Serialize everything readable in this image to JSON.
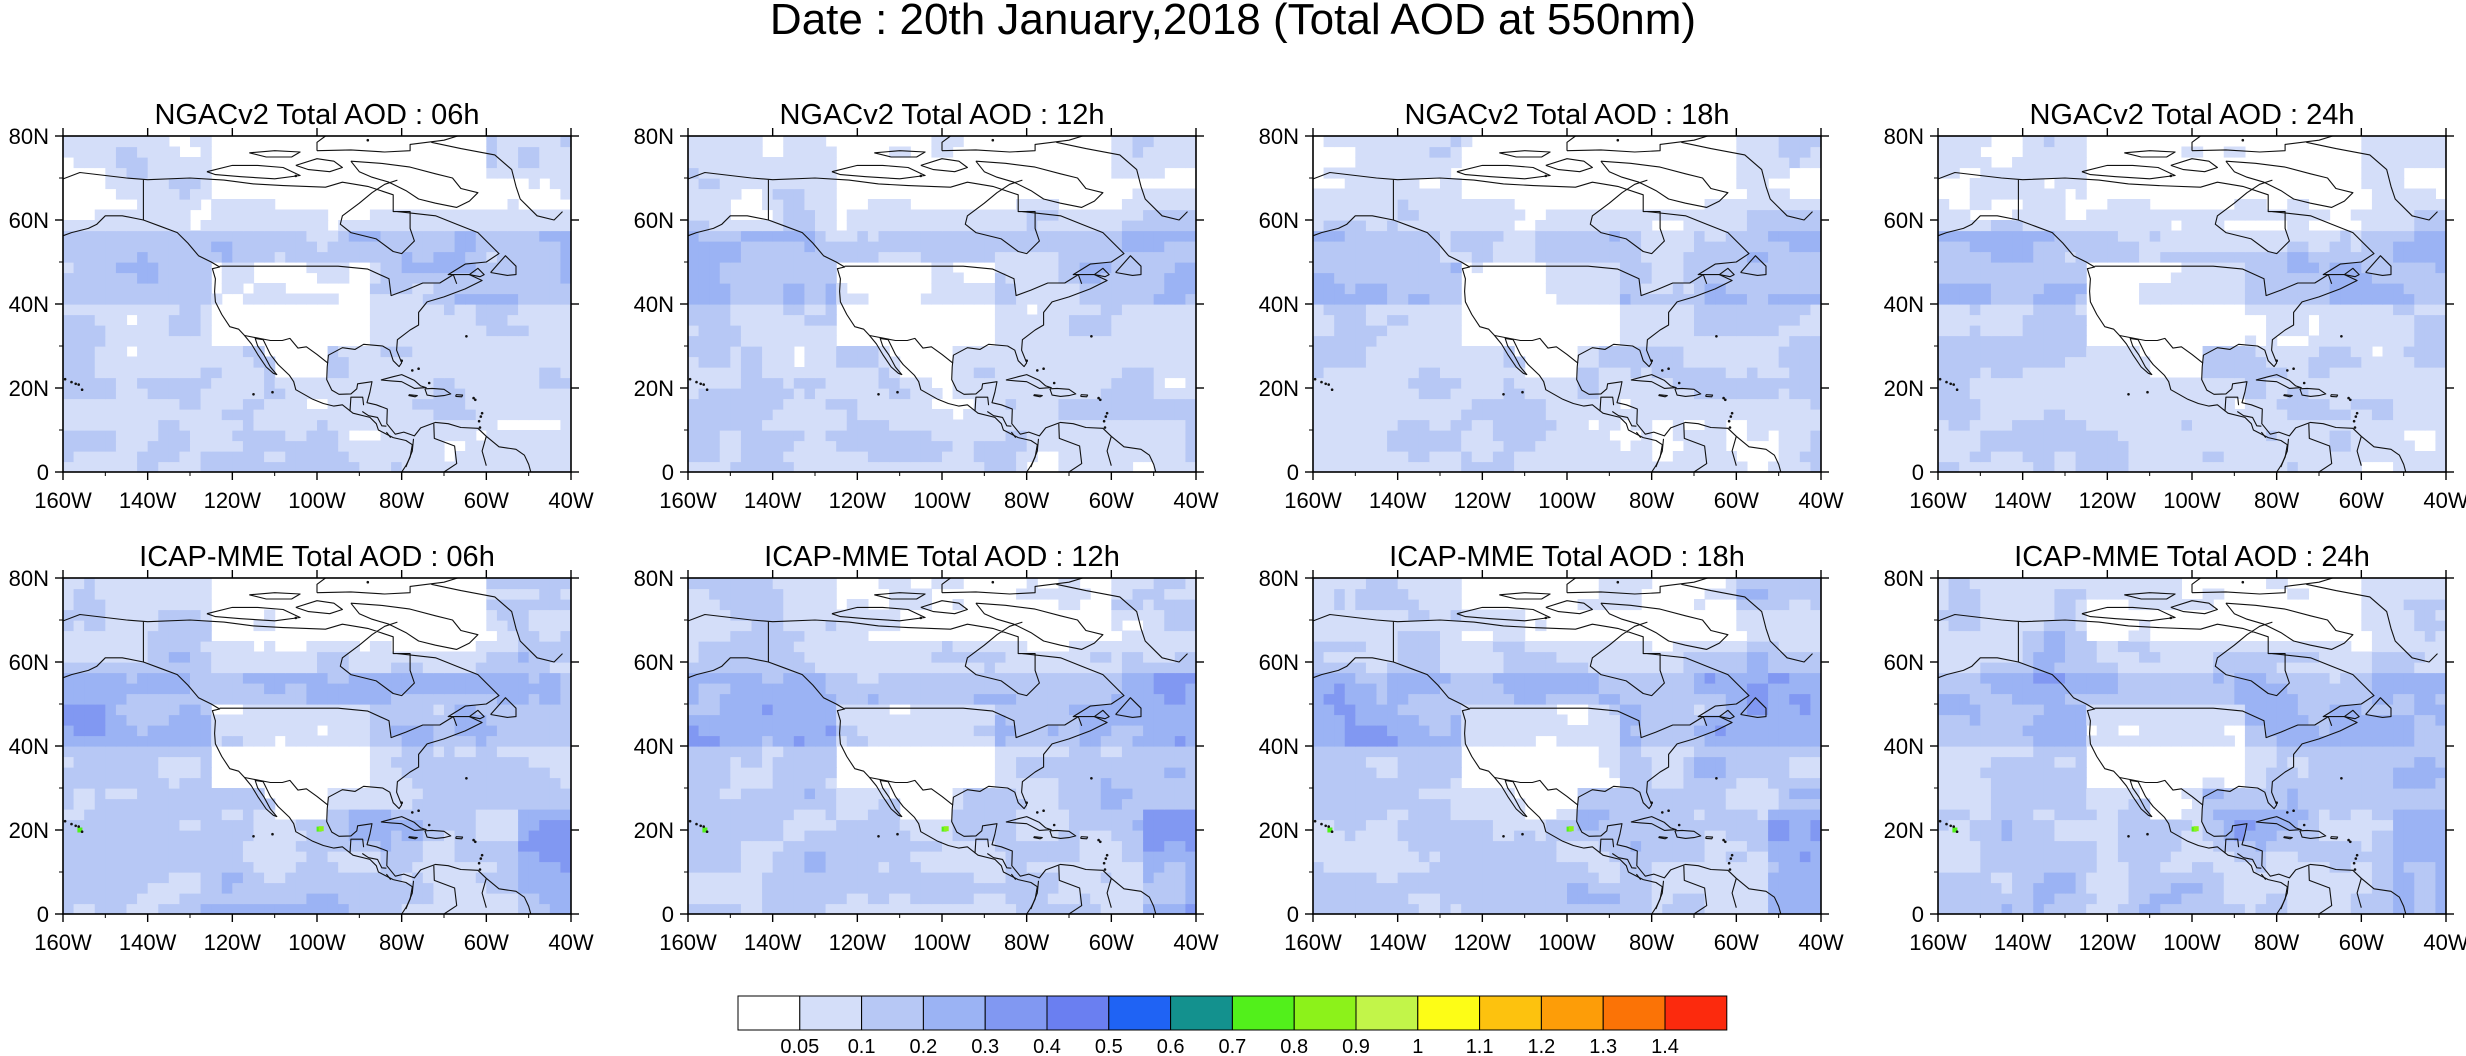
{
  "figure": {
    "title": "Date : 20th January,2018 (Total AOD at 550nm)"
  },
  "panels": [
    {
      "title": "NGACv2 Total AOD : 06h",
      "model": "NGACv2",
      "hour": "06h"
    },
    {
      "title": "NGACv2 Total AOD : 12h",
      "model": "NGACv2",
      "hour": "12h"
    },
    {
      "title": "NGACv2 Total AOD : 18h",
      "model": "NGACv2",
      "hour": "18h"
    },
    {
      "title": "NGACv2 Total AOD : 24h",
      "model": "NGACv2",
      "hour": "24h"
    },
    {
      "title": "ICAP-MME Total AOD : 06h",
      "model": "ICAP-MME",
      "hour": "06h"
    },
    {
      "title": "ICAP-MME Total AOD : 12h",
      "model": "ICAP-MME",
      "hour": "12h"
    },
    {
      "title": "ICAP-MME Total AOD : 18h",
      "model": "ICAP-MME",
      "hour": "18h"
    },
    {
      "title": "ICAP-MME Total AOD : 24h",
      "model": "ICAP-MME",
      "hour": "24h"
    }
  ],
  "axes": {
    "lon_ticks": [
      "160W",
      "140W",
      "120W",
      "100W",
      "80W",
      "60W",
      "40W"
    ],
    "lat_ticks": [
      "80N",
      "60N",
      "40N",
      "20N",
      "0"
    ],
    "lon_range": [
      -160,
      -40
    ],
    "lat_range": [
      0,
      80
    ]
  },
  "colorbar": {
    "labels": [
      "0.05",
      "0.1",
      "0.2",
      "0.3",
      "0.4",
      "0.5",
      "0.6",
      "0.7",
      "0.8",
      "0.9",
      "1",
      "1.1",
      "1.2",
      "1.3",
      "1.4"
    ],
    "colors": [
      "#ffffff",
      "#d4def9",
      "#b7c8f5",
      "#9bb3f4",
      "#8198f2",
      "#6a7ff1",
      "#1f63f4",
      "#13918e",
      "#52f01b",
      "#8cf21a",
      "#c2f549",
      "#fdfd16",
      "#fdc20e",
      "#fd9d08",
      "#fb7306",
      "#fc2a0d"
    ]
  },
  "chart_data": [
    {
      "type": "heatmap",
      "title": "Date : 20th January,2018 (Total AOD at 550nm)",
      "variable": "Total AOD at 550nm",
      "date": "20th January,2018",
      "lon_range": [
        -160,
        -40
      ],
      "lat_range": [
        0,
        80
      ],
      "x_ticks": [
        "160W",
        "140W",
        "120W",
        "100W",
        "80W",
        "60W",
        "40W"
      ],
      "y_ticks": [
        "80N",
        "60N",
        "40N",
        "20N",
        "0"
      ],
      "panels": [
        "NGACv2 Total AOD : 06h",
        "NGACv2 Total AOD : 12h",
        "NGACv2 Total AOD : 18h",
        "NGACv2 Total AOD : 24h",
        "ICAP-MME Total AOD : 06h",
        "ICAP-MME Total AOD : 12h",
        "ICAP-MME Total AOD : 18h",
        "ICAP-MME Total AOD : 24h"
      ],
      "color_levels": [
        0.05,
        0.1,
        0.2,
        0.3,
        0.4,
        0.5,
        0.6,
        0.7,
        0.8,
        0.9,
        1,
        1.1,
        1.2,
        1.3,
        1.4
      ],
      "legend": "bottom"
    }
  ]
}
